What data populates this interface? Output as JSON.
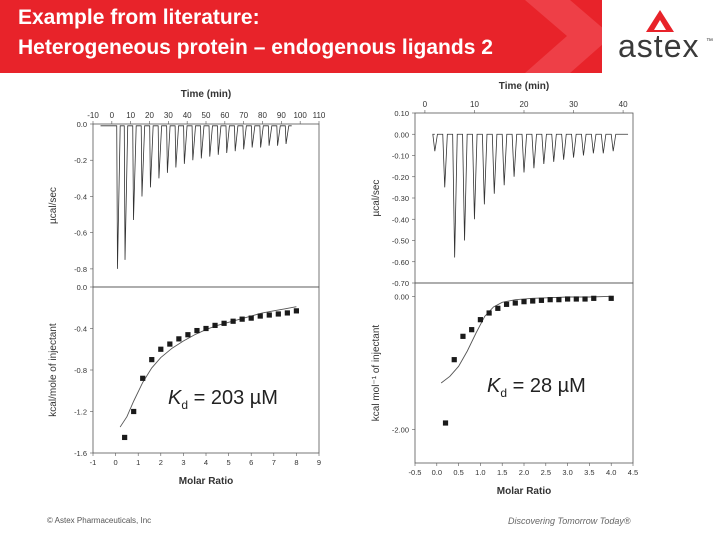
{
  "slide": {
    "title_line1": "Example from literature:",
    "title_line2": "Heterogeneous protein – endogenous ligands 2",
    "logo_text": "astex",
    "logo_tm": "™",
    "footer_left": "© Astex Pharmaceuticals, Inc",
    "footer_right": "Discovering Tomorrow Today®",
    "brand_red": "#e8232a"
  },
  "chart_data": [
    {
      "type": "line",
      "panel": "raw-left",
      "title": "",
      "xlabel": "Time (min)",
      "ylabel": "µcal/sec",
      "xlim": [
        -10,
        110
      ],
      "ylim": [
        -0.9,
        0.0
      ],
      "xticks": [
        "-10",
        "0",
        "10",
        "20",
        "30",
        "40",
        "50",
        "60",
        "70",
        "80",
        "90",
        "100",
        "110"
      ],
      "yticks": [
        "0.0",
        "-0.2",
        "-0.4",
        "-0.6",
        "-0.8"
      ],
      "baseline": -0.01,
      "injection_times": [
        3,
        7,
        11.5,
        16,
        20.5,
        25,
        29.5,
        34,
        38.5,
        43,
        47.5,
        52,
        56.5,
        61,
        65.5,
        70,
        74.5,
        79,
        83.5,
        88,
        92.5
      ],
      "peak_values": [
        -0.8,
        -0.75,
        -0.53,
        -0.4,
        -0.35,
        -0.3,
        -0.27,
        -0.24,
        -0.22,
        -0.2,
        -0.19,
        -0.18,
        -0.17,
        -0.16,
        -0.15,
        -0.14,
        -0.13,
        -0.13,
        -0.12,
        -0.12,
        -0.11
      ]
    },
    {
      "type": "scatter",
      "panel": "fit-left",
      "title": "",
      "xlabel": "Molar Ratio",
      "ylabel": "kcal/mole of injectant",
      "xlim": [
        -1,
        9
      ],
      "ylim": [
        -1.6,
        0.0
      ],
      "xticks": [
        "-1",
        "0",
        "1",
        "2",
        "3",
        "4",
        "5",
        "6",
        "7",
        "8",
        "9"
      ],
      "yticks": [
        "0.0",
        "-0.4",
        "-0.8",
        "-1.2",
        "-1.6"
      ],
      "annotation": {
        "symbol": "K",
        "subscript": "d",
        "text": " = 203 µM"
      },
      "x": [
        0.4,
        0.8,
        1.2,
        1.6,
        2.0,
        2.4,
        2.8,
        3.2,
        3.6,
        4.0,
        4.4,
        4.8,
        5.2,
        5.6,
        6.0,
        6.4,
        6.8,
        7.2,
        7.6,
        8.0
      ],
      "y": [
        -1.45,
        -1.2,
        -0.88,
        -0.7,
        -0.6,
        -0.55,
        -0.5,
        -0.46,
        -0.42,
        -0.4,
        -0.37,
        -0.35,
        -0.33,
        -0.31,
        -0.3,
        -0.28,
        -0.27,
        -0.26,
        -0.25,
        -0.23
      ],
      "fit": {
        "x": [
          0.2,
          0.5,
          0.8,
          1.2,
          1.6,
          2.0,
          2.5,
          3.0,
          3.5,
          4.0,
          4.5,
          5.0,
          5.5,
          6.0,
          6.5,
          7.0,
          7.5,
          8.0
        ],
        "y": [
          -1.35,
          -1.25,
          -1.1,
          -0.92,
          -0.78,
          -0.68,
          -0.59,
          -0.52,
          -0.46,
          -0.41,
          -0.37,
          -0.34,
          -0.31,
          -0.28,
          -0.25,
          -0.23,
          -0.21,
          -0.19
        ]
      }
    },
    {
      "type": "line",
      "panel": "raw-right",
      "title": "",
      "xlabel": "Time (min)",
      "ylabel": "µcal/sec",
      "xlim": [
        -2,
        42
      ],
      "ylim": [
        -0.7,
        0.1
      ],
      "xticks": [
        "0",
        "10",
        "20",
        "30",
        "40"
      ],
      "yticks": [
        "0.10",
        "0.00",
        "-0.10",
        "-0.20",
        "-0.30",
        "-0.40",
        "-0.50",
        "-0.60",
        "-0.70"
      ],
      "baseline": 0.0,
      "injection_times": [
        2,
        4,
        6,
        8,
        10,
        12,
        14,
        16,
        18,
        20,
        22,
        24,
        26,
        28,
        30,
        32,
        34,
        36,
        38
      ],
      "peak_values": [
        -0.08,
        -0.25,
        -0.58,
        -0.5,
        -0.4,
        -0.33,
        -0.28,
        -0.24,
        -0.2,
        -0.18,
        -0.16,
        -0.14,
        -0.13,
        -0.12,
        -0.11,
        -0.1,
        -0.09,
        -0.09,
        -0.08
      ]
    },
    {
      "type": "scatter",
      "panel": "fit-right",
      "title": "",
      "xlabel": "Molar Ratio",
      "ylabel": "kcal mol⁻¹ of injectant",
      "xlim": [
        -0.5,
        4.5
      ],
      "ylim": [
        -2.5,
        0.2
      ],
      "xticks": [
        "-0.5",
        "0.0",
        "0.5",
        "1.0",
        "1.5",
        "2.0",
        "2.5",
        "3.0",
        "3.5",
        "4.0",
        "4.5"
      ],
      "yticks": [
        "0.00",
        "-2.00"
      ],
      "annotation": {
        "symbol": "K",
        "subscript": "d",
        "text": " = 28 µM"
      },
      "x": [
        0.2,
        0.4,
        0.6,
        0.8,
        1.0,
        1.2,
        1.4,
        1.6,
        1.8,
        2.0,
        2.2,
        2.4,
        2.6,
        2.8,
        3.0,
        3.2,
        3.4,
        3.6,
        4.0
      ],
      "y": [
        -1.9,
        -0.95,
        -0.6,
        -0.5,
        -0.35,
        -0.25,
        -0.18,
        -0.12,
        -0.1,
        -0.08,
        -0.07,
        -0.06,
        -0.05,
        -0.05,
        -0.04,
        -0.04,
        -0.04,
        -0.03,
        -0.03
      ],
      "fit": {
        "x": [
          0.1,
          0.3,
          0.5,
          0.7,
          0.9,
          1.1,
          1.3,
          1.5,
          1.8,
          2.2,
          2.6,
          3.0,
          3.5,
          4.0
        ],
        "y": [
          -1.3,
          -1.2,
          -1.05,
          -0.82,
          -0.55,
          -0.3,
          -0.16,
          -0.09,
          -0.05,
          -0.03,
          -0.02,
          -0.01,
          -0.01,
          0.0
        ]
      }
    }
  ]
}
